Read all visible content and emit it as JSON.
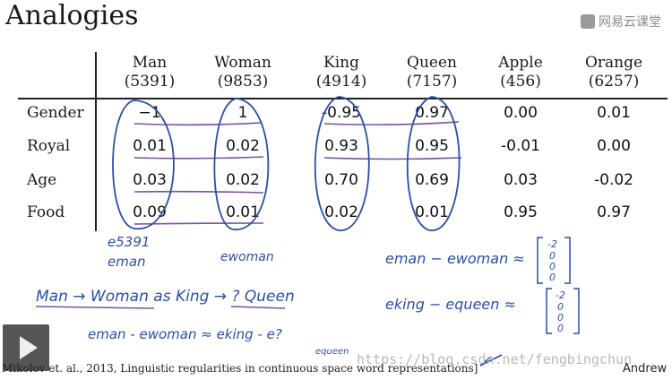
{
  "title": "Analogies",
  "logo": {
    "text": "网易云课堂",
    "icon": "netease-logo-icon"
  },
  "table": {
    "columns": [
      {
        "word": "Man",
        "index": "(5391)"
      },
      {
        "word": "Woman",
        "index": "(9853)"
      },
      {
        "word": "King",
        "index": "(4914)"
      },
      {
        "word": "Queen",
        "index": "(7157)"
      },
      {
        "word": "Apple",
        "index": "(456)"
      },
      {
        "word": "Orange",
        "index": "(6257)"
      }
    ],
    "rows": [
      {
        "label": "Gender",
        "values": [
          "−1",
          "1",
          "-0.95",
          "0.97",
          "0.00",
          "0.01"
        ]
      },
      {
        "label": "Royal",
        "values": [
          "0.01",
          "0.02",
          "0.93",
          "0.95",
          "-0.01",
          "0.00"
        ]
      },
      {
        "label": "Age",
        "values": [
          "0.03",
          "0.02",
          "0.70",
          "0.69",
          "0.03",
          "-0.02"
        ]
      },
      {
        "label": "Food",
        "values": [
          "0.09",
          "0.01",
          "0.02",
          "0.01",
          "0.95",
          "0.97"
        ]
      }
    ]
  },
  "handwriting": {
    "e_5391": "e5391",
    "e_man": "eman",
    "e_woman": "ewoman",
    "diff_man_woman": "eman − ewoman ≈",
    "diff_king_queen": "eking − equeen ≈",
    "vector_man_woman": [
      "-2",
      "0",
      "0",
      "0"
    ],
    "vector_king_queen": [
      "-2",
      "0",
      "0",
      "0"
    ],
    "analogy": "Man → Woman  as  King → ? Queen",
    "equation": "eman - ewoman ≈ eking - e?",
    "equation_sub": "equeen"
  },
  "video": {
    "play_icon": "play-icon"
  },
  "citation": "Mikolov et. al., 2013, Linguistic regularities in continuous space word representations]",
  "watermark": "https://blog.csdn.net/fengbingchun",
  "author": "Andrew"
}
